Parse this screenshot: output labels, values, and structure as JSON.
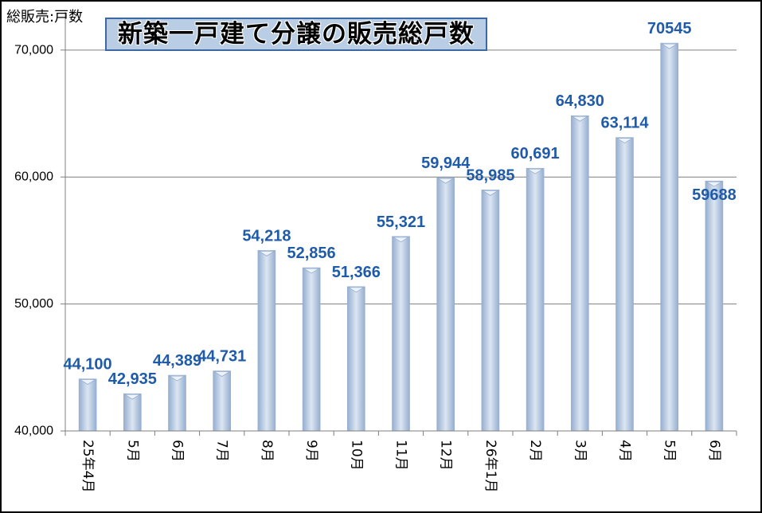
{
  "colors": {
    "background": "#ffffff",
    "border": "#000000",
    "bar_center": "#dce6f2",
    "bar_edge": "#95aed0",
    "bar_cap": "#eef3fa",
    "data_label": "#1f5ba8",
    "gridline": "#7f7f7f",
    "axis": "#7f7f7f",
    "title_bg": "#b9cde5",
    "title_border": "#3c68a4"
  },
  "chart_data": {
    "type": "bar",
    "title": "新築一戸建て分譲の販売総戸数",
    "ylabel": "総販売:戸数",
    "categories": [
      "25年4月",
      "5月",
      "6月",
      "7月",
      "8月",
      "9月",
      "10月",
      "11月",
      "12月",
      "26年1月",
      "2月",
      "3月",
      "4月",
      "5月",
      "6月"
    ],
    "values": [
      44100,
      42935,
      44389,
      44731,
      54218,
      52856,
      51366,
      55321,
      59944,
      58985,
      60691,
      64830,
      63114,
      70545,
      59688
    ],
    "data_labels": [
      "44,100",
      "42,935",
      "44,389",
      "44,731",
      "54,218",
      "52,856",
      "51,366",
      "55,321",
      "59,944",
      "58,985",
      "60,691",
      "64,830",
      "63,114",
      "70545",
      "59688"
    ],
    "ylim": [
      40000,
      73000
    ],
    "yticks": [
      40000,
      50000,
      60000,
      70000
    ],
    "ytick_labels": [
      "40,000",
      "50,000",
      "60,000",
      "70,000"
    ],
    "grid": true
  }
}
